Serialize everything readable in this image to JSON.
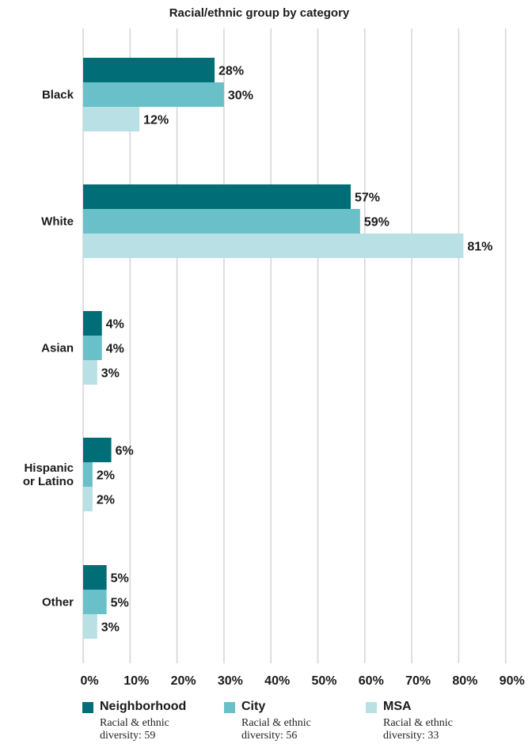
{
  "chart_data": {
    "type": "bar",
    "orientation": "horizontal",
    "title": "Racial/ethnic group by category",
    "categories": [
      "Black",
      "White",
      "Asian",
      "Hispanic or Latino",
      "Other"
    ],
    "category_labels": [
      [
        "Black"
      ],
      [
        "White"
      ],
      [
        "Asian"
      ],
      [
        "Hispanic",
        "or Latino"
      ],
      [
        "Other"
      ]
    ],
    "series": [
      {
        "name": "Neighborhood",
        "color": "#006d77",
        "values": [
          28,
          57,
          4,
          6,
          5
        ],
        "labels": [
          "28%",
          "57%",
          "4%",
          "6%",
          "5%"
        ]
      },
      {
        "name": "City",
        "color": "#6ac0c9",
        "values": [
          30,
          59,
          4,
          2,
          5
        ],
        "labels": [
          "30%",
          "59%",
          "4%",
          "2%",
          "5%"
        ]
      },
      {
        "name": "MSA",
        "color": "#b8e0e5",
        "values": [
          12,
          81,
          3,
          2,
          3
        ],
        "labels": [
          "12%",
          "81%",
          "3%",
          "2%",
          "3%"
        ]
      }
    ],
    "xlim": [
      0,
      90
    ],
    "xticks": [
      0,
      10,
      20,
      30,
      40,
      50,
      60,
      70,
      80,
      90
    ],
    "xtick_labels": [
      "0%",
      "10%",
      "20%",
      "30%",
      "40%",
      "50%",
      "60%",
      "70%",
      "80%",
      "90%"
    ],
    "grid": true,
    "legend_position": "bottom"
  },
  "legend": [
    {
      "name": "Neighborhood",
      "color": "#006d77",
      "note": "Racial & ethnic diversity: 59"
    },
    {
      "name": "City",
      "color": "#6ac0c9",
      "note": "Racial & ethnic diversity: 56"
    },
    {
      "name": "MSA",
      "color": "#b8e0e5",
      "note": "Racial & ethnic diversity: 33"
    }
  ]
}
